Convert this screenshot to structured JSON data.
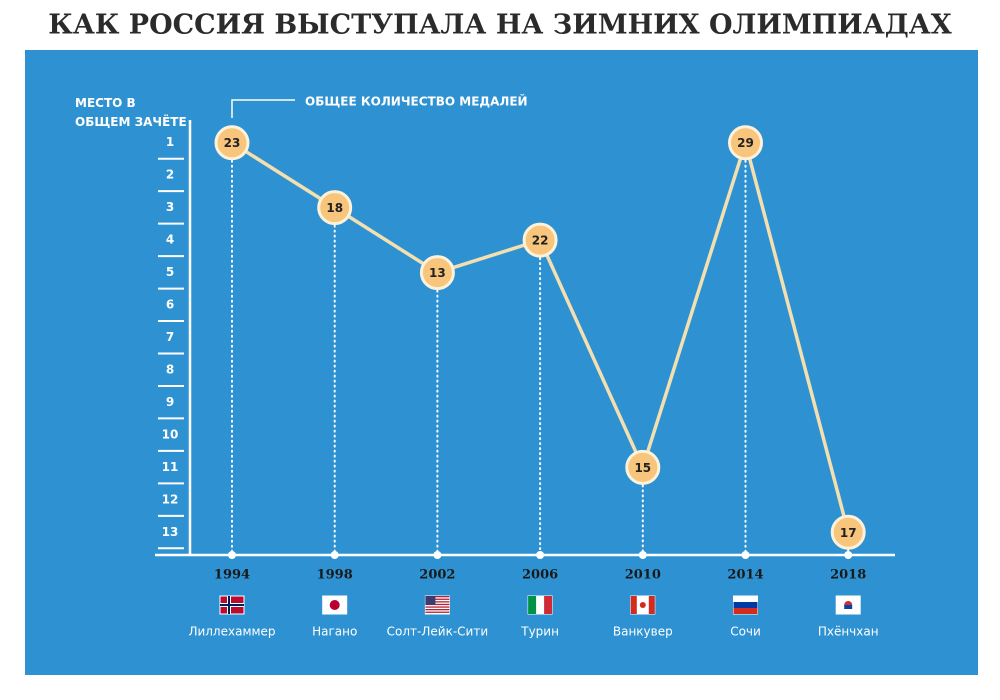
{
  "chart_data": {
    "type": "line",
    "title": "КАК РОССИЯ ВЫСТУПАЛА НА ЗИМНИХ ОЛИМПИАДАХ",
    "y_label": "МЕСТО В ОБЩЕМ ЗАЧЁТЕ",
    "annotation": "ОБЩЕЕ КОЛИЧЕСТВО МЕДАЛЕЙ",
    "categories": [
      "1994",
      "1998",
      "2002",
      "2006",
      "2010",
      "2014",
      "2018"
    ],
    "cities": [
      "Лиллехаммер",
      "Нагано",
      "Солт-Лейк-Сити",
      "Турин",
      "Ванкувер",
      "Сочи",
      "Пхёнчхан"
    ],
    "series": [
      {
        "color": "#f3dfb0",
        "values": [
          1,
          3,
          5,
          4,
          11,
          1,
          13
        ]
      }
    ],
    "medals": [
      23,
      18,
      13,
      22,
      15,
      29,
      17
    ],
    "ylim": [
      0.3,
      13.7
    ],
    "y_inverted": true,
    "yticks": [
      1,
      2,
      3,
      4,
      5,
      6,
      7,
      8,
      9,
      10,
      11,
      12,
      13
    ]
  }
}
